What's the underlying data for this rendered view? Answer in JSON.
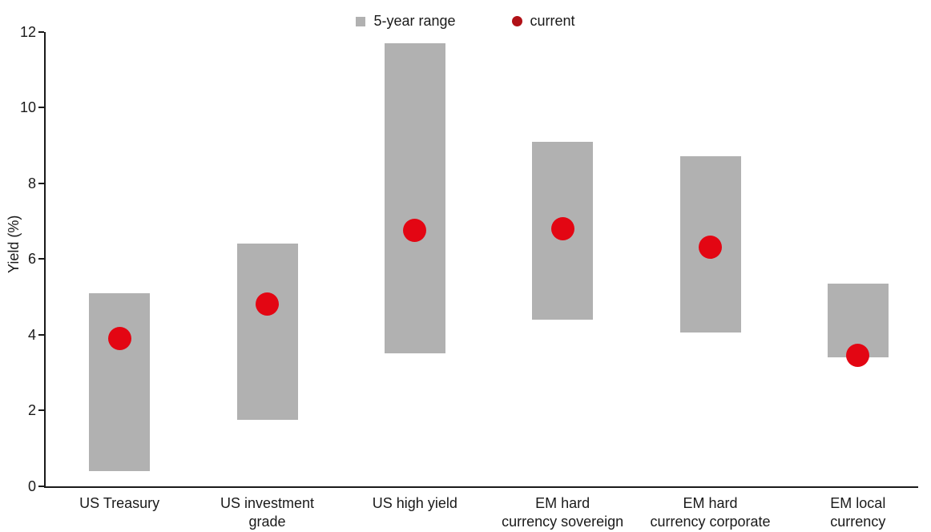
{
  "legend": {
    "range_label": "5-year range",
    "current_label": "current"
  },
  "y_axis": {
    "label": "Yield (%)"
  },
  "chart_data": {
    "type": "bar",
    "subtype": "floating-range-bar-with-point",
    "title": "",
    "xlabel": "",
    "ylabel": "Yield (%)",
    "ylim": [
      0,
      12
    ],
    "yticks": [
      0,
      2,
      4,
      6,
      8,
      10,
      12
    ],
    "grid": false,
    "legend_position": "top-center",
    "legend_entries": [
      "5-year range",
      "current"
    ],
    "categories": [
      "US Treasury",
      "US investment\ngrade",
      "US high yield",
      "EM hard\ncurrency sovereign",
      "EM hard\ncurrency corporate",
      "EM local\ncurrency"
    ],
    "series": [
      {
        "name": "5-year range",
        "type": "range",
        "low": [
          0.4,
          1.75,
          3.5,
          4.4,
          4.05,
          3.4
        ],
        "high": [
          5.1,
          6.4,
          11.7,
          9.1,
          8.7,
          5.35
        ]
      },
      {
        "name": "current",
        "type": "point",
        "values": [
          3.9,
          4.8,
          6.75,
          6.8,
          6.3,
          3.45
        ]
      }
    ],
    "colors": {
      "range_bar": "#b1b1b1",
      "current_dot": "#e30613",
      "legend_current_dot": "#b11117",
      "axis": "#1a1a1a",
      "text": "#1a1a1a"
    }
  }
}
